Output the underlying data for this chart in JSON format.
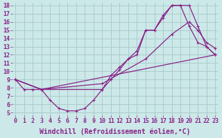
{
  "xlabel": "Windchill (Refroidissement éolien,°C)",
  "bg_color": "#cce8e8",
  "line_color": "#882288",
  "grid_color": "#aacccc",
  "xlim": [
    0,
    23
  ],
  "ylim": [
    5,
    18
  ],
  "xticks": [
    0,
    1,
    2,
    3,
    4,
    5,
    6,
    7,
    8,
    9,
    10,
    11,
    12,
    13,
    14,
    15,
    16,
    17,
    18,
    19,
    20,
    21,
    22,
    23
  ],
  "yticks": [
    5,
    6,
    7,
    8,
    9,
    10,
    11,
    12,
    13,
    14,
    15,
    16,
    17,
    18
  ],
  "curve1_x": [
    0,
    1,
    2,
    3,
    4,
    5,
    6,
    7,
    8,
    9,
    10,
    11,
    12,
    13,
    14,
    15,
    16,
    17,
    18,
    19,
    20,
    21,
    22,
    23
  ],
  "curve1_y": [
    9,
    7.8,
    7.8,
    7.8,
    6.5,
    5.5,
    5.2,
    5.2,
    5.5,
    6.5,
    7.8,
    9.5,
    10.5,
    11.5,
    12.0,
    15.0,
    15.0,
    16.5,
    18.0,
    18.0,
    18.0,
    15.5,
    13.0,
    12.0
  ],
  "curve2_x": [
    0,
    3,
    10,
    11,
    12,
    13,
    14,
    15,
    16,
    17,
    18,
    19,
    20,
    21,
    22,
    23
  ],
  "curve2_y": [
    9,
    7.8,
    7.8,
    9.0,
    10.2,
    11.5,
    12.5,
    15.0,
    15.0,
    16.8,
    18.0,
    18.0,
    15.5,
    13.5,
    13.0,
    12.0
  ],
  "curve3_x": [
    0,
    3,
    10,
    15,
    18,
    20,
    21,
    22,
    23
  ],
  "curve3_y": [
    9,
    7.8,
    8.5,
    11.5,
    14.5,
    16.0,
    15.0,
    13.5,
    12.8
  ],
  "curve4_x": [
    0,
    3,
    23
  ],
  "curve4_y": [
    9,
    7.8,
    12.0
  ],
  "font_size_label": 7,
  "font_size_tick": 6
}
